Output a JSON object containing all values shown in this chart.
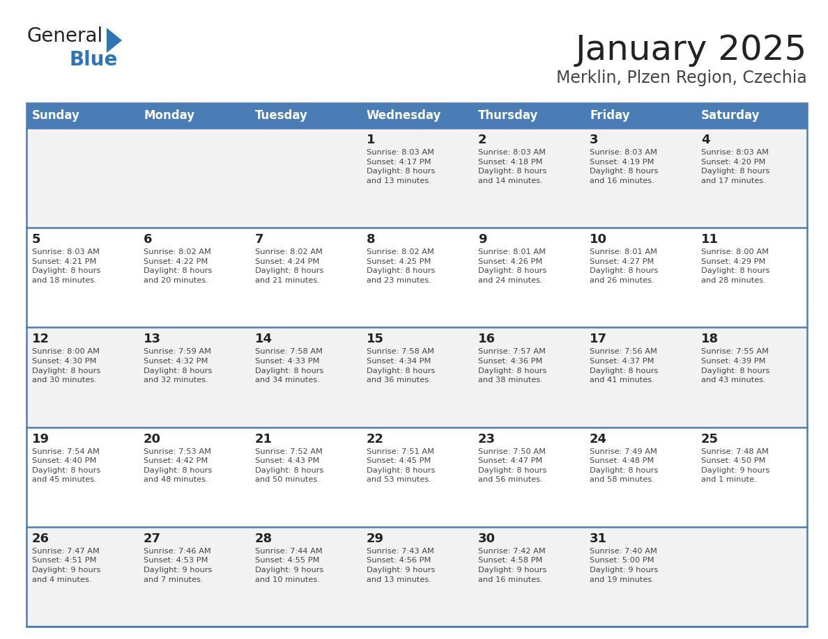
{
  "title": "January 2025",
  "subtitle": "Merklin, Plzen Region, Czechia",
  "days_of_week": [
    "Sunday",
    "Monday",
    "Tuesday",
    "Wednesday",
    "Thursday",
    "Friday",
    "Saturday"
  ],
  "header_bg": "#4A7DB5",
  "header_text": "#FFFFFF",
  "row_bg_light": "#F2F2F2",
  "row_bg_white": "#FFFFFF",
  "divider_color": "#4A7DB5",
  "day_num_color": "#222222",
  "cell_text_color": "#444444",
  "title_color": "#222222",
  "subtitle_color": "#444444",
  "logo_general_color": "#222222",
  "logo_blue_color": "#2E75B6",
  "logo_triangle_color": "#2E75B6",
  "calendar": [
    [
      {
        "day": null,
        "info": null
      },
      {
        "day": null,
        "info": null
      },
      {
        "day": null,
        "info": null
      },
      {
        "day": "1",
        "info": "Sunrise: 8:03 AM\nSunset: 4:17 PM\nDaylight: 8 hours\nand 13 minutes."
      },
      {
        "day": "2",
        "info": "Sunrise: 8:03 AM\nSunset: 4:18 PM\nDaylight: 8 hours\nand 14 minutes."
      },
      {
        "day": "3",
        "info": "Sunrise: 8:03 AM\nSunset: 4:19 PM\nDaylight: 8 hours\nand 16 minutes."
      },
      {
        "day": "4",
        "info": "Sunrise: 8:03 AM\nSunset: 4:20 PM\nDaylight: 8 hours\nand 17 minutes."
      }
    ],
    [
      {
        "day": "5",
        "info": "Sunrise: 8:03 AM\nSunset: 4:21 PM\nDaylight: 8 hours\nand 18 minutes."
      },
      {
        "day": "6",
        "info": "Sunrise: 8:02 AM\nSunset: 4:22 PM\nDaylight: 8 hours\nand 20 minutes."
      },
      {
        "day": "7",
        "info": "Sunrise: 8:02 AM\nSunset: 4:24 PM\nDaylight: 8 hours\nand 21 minutes."
      },
      {
        "day": "8",
        "info": "Sunrise: 8:02 AM\nSunset: 4:25 PM\nDaylight: 8 hours\nand 23 minutes."
      },
      {
        "day": "9",
        "info": "Sunrise: 8:01 AM\nSunset: 4:26 PM\nDaylight: 8 hours\nand 24 minutes."
      },
      {
        "day": "10",
        "info": "Sunrise: 8:01 AM\nSunset: 4:27 PM\nDaylight: 8 hours\nand 26 minutes."
      },
      {
        "day": "11",
        "info": "Sunrise: 8:00 AM\nSunset: 4:29 PM\nDaylight: 8 hours\nand 28 minutes."
      }
    ],
    [
      {
        "day": "12",
        "info": "Sunrise: 8:00 AM\nSunset: 4:30 PM\nDaylight: 8 hours\nand 30 minutes."
      },
      {
        "day": "13",
        "info": "Sunrise: 7:59 AM\nSunset: 4:32 PM\nDaylight: 8 hours\nand 32 minutes."
      },
      {
        "day": "14",
        "info": "Sunrise: 7:58 AM\nSunset: 4:33 PM\nDaylight: 8 hours\nand 34 minutes."
      },
      {
        "day": "15",
        "info": "Sunrise: 7:58 AM\nSunset: 4:34 PM\nDaylight: 8 hours\nand 36 minutes."
      },
      {
        "day": "16",
        "info": "Sunrise: 7:57 AM\nSunset: 4:36 PM\nDaylight: 8 hours\nand 38 minutes."
      },
      {
        "day": "17",
        "info": "Sunrise: 7:56 AM\nSunset: 4:37 PM\nDaylight: 8 hours\nand 41 minutes."
      },
      {
        "day": "18",
        "info": "Sunrise: 7:55 AM\nSunset: 4:39 PM\nDaylight: 8 hours\nand 43 minutes."
      }
    ],
    [
      {
        "day": "19",
        "info": "Sunrise: 7:54 AM\nSunset: 4:40 PM\nDaylight: 8 hours\nand 45 minutes."
      },
      {
        "day": "20",
        "info": "Sunrise: 7:53 AM\nSunset: 4:42 PM\nDaylight: 8 hours\nand 48 minutes."
      },
      {
        "day": "21",
        "info": "Sunrise: 7:52 AM\nSunset: 4:43 PM\nDaylight: 8 hours\nand 50 minutes."
      },
      {
        "day": "22",
        "info": "Sunrise: 7:51 AM\nSunset: 4:45 PM\nDaylight: 8 hours\nand 53 minutes."
      },
      {
        "day": "23",
        "info": "Sunrise: 7:50 AM\nSunset: 4:47 PM\nDaylight: 8 hours\nand 56 minutes."
      },
      {
        "day": "24",
        "info": "Sunrise: 7:49 AM\nSunset: 4:48 PM\nDaylight: 8 hours\nand 58 minutes."
      },
      {
        "day": "25",
        "info": "Sunrise: 7:48 AM\nSunset: 4:50 PM\nDaylight: 9 hours\nand 1 minute."
      }
    ],
    [
      {
        "day": "26",
        "info": "Sunrise: 7:47 AM\nSunset: 4:51 PM\nDaylight: 9 hours\nand 4 minutes."
      },
      {
        "day": "27",
        "info": "Sunrise: 7:46 AM\nSunset: 4:53 PM\nDaylight: 9 hours\nand 7 minutes."
      },
      {
        "day": "28",
        "info": "Sunrise: 7:44 AM\nSunset: 4:55 PM\nDaylight: 9 hours\nand 10 minutes."
      },
      {
        "day": "29",
        "info": "Sunrise: 7:43 AM\nSunset: 4:56 PM\nDaylight: 9 hours\nand 13 minutes."
      },
      {
        "day": "30",
        "info": "Sunrise: 7:42 AM\nSunset: 4:58 PM\nDaylight: 9 hours\nand 16 minutes."
      },
      {
        "day": "31",
        "info": "Sunrise: 7:40 AM\nSunset: 5:00 PM\nDaylight: 9 hours\nand 19 minutes."
      },
      {
        "day": null,
        "info": null
      }
    ]
  ]
}
